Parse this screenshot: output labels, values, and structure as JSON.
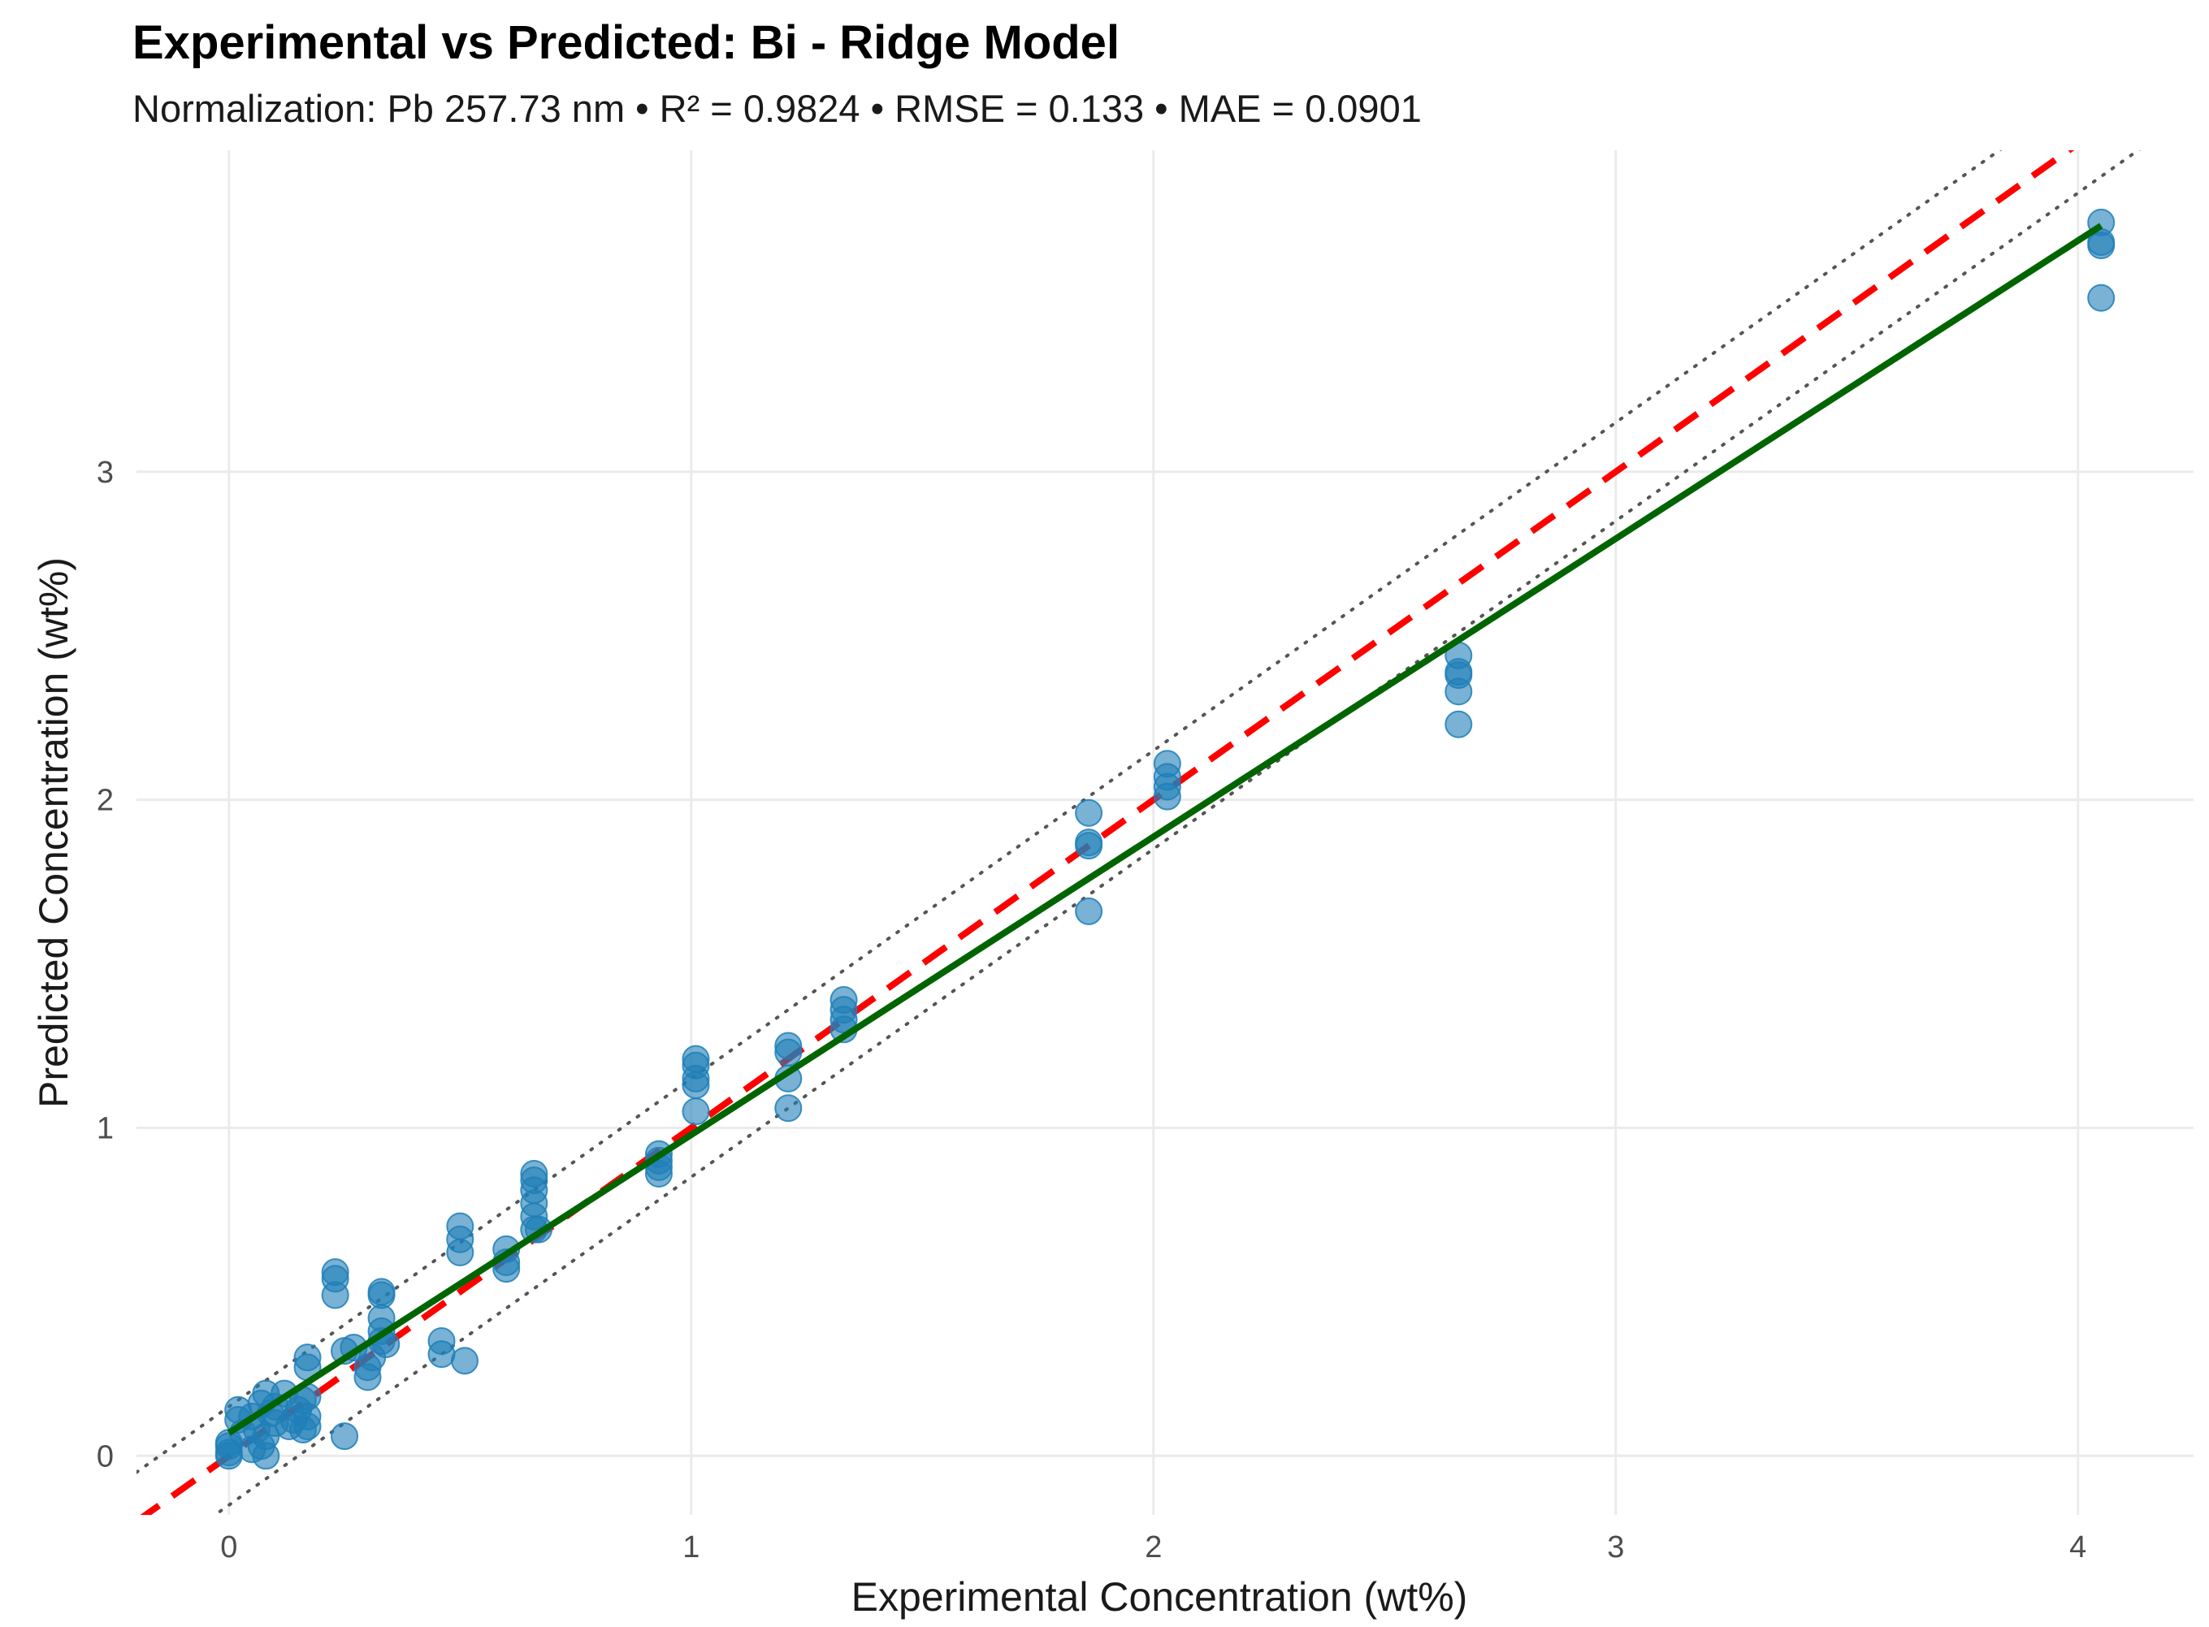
{
  "chart_data": {
    "type": "scatter",
    "title": "Experimental vs Predicted: Bi - Ridge Model",
    "subtitle": "Normalization: Pb 257.73 nm • R² = 0.9824 • RMSE = 0.133 • MAE = 0.0901",
    "xlabel": "Experimental Concentration (wt%)",
    "ylabel": "Predicted Concentration (wt%)",
    "xlim": [
      -0.2,
      4.25
    ],
    "ylim": [
      -0.18,
      3.98
    ],
    "x_ticks": [
      0,
      1,
      2,
      3,
      4
    ],
    "x_tick_labels": [
      "0",
      "1",
      "2",
      "3",
      "4"
    ],
    "y_ticks": [
      0,
      1,
      2,
      3
    ],
    "y_tick_labels": [
      "0",
      "1",
      "2",
      "3"
    ],
    "grid": true,
    "colors": {
      "points": "#1f7fb8",
      "identity_line": "#ff0000",
      "fit_line": "#006400",
      "tolerance_lines": "#555555",
      "grid": "#ebebeb"
    },
    "series": [
      {
        "name": "Samples",
        "kind": "points",
        "x": [
          0,
          0,
          0,
          0,
          0.02,
          0.02,
          0.03,
          0.05,
          0.05,
          0.06,
          0.07,
          0.07,
          0.08,
          0.08,
          0.08,
          0.09,
          0.1,
          0.1,
          0.12,
          0.13,
          0.14,
          0.15,
          0.16,
          0.16,
          0.17,
          0.17,
          0.17,
          0.17,
          0.17,
          0.23,
          0.23,
          0.23,
          0.25,
          0.25,
          0.27,
          0.3,
          0.3,
          0.31,
          0.33,
          0.33,
          0.33,
          0.33,
          0.33,
          0.34,
          0.46,
          0.46,
          0.5,
          0.5,
          0.5,
          0.51,
          0.6,
          0.6,
          0.6,
          0.66,
          0.66,
          0.66,
          0.66,
          0.66,
          0.66,
          0.67,
          0.93,
          0.93,
          0.93,
          0.93,
          1.01,
          1.01,
          1.01,
          1.01,
          1.01,
          1.21,
          1.21,
          1.21,
          1.21,
          1.33,
          1.33,
          1.33,
          1.33,
          1.86,
          1.86,
          1.86,
          1.86,
          2.03,
          2.03,
          2.03,
          2.03,
          2.66,
          2.66,
          2.66,
          2.66,
          2.66,
          4.05,
          4.05,
          4.05,
          4.05
        ],
        "y": [
          0.0,
          0.01,
          0.03,
          0.04,
          0.14,
          0.11,
          0.07,
          0.02,
          0.12,
          0.08,
          0.03,
          0.16,
          0.0,
          0.19,
          0.06,
          0.13,
          0.15,
          0.1,
          0.19,
          0.09,
          0.11,
          0.14,
          0.08,
          0.17,
          0.09,
          0.27,
          0.3,
          0.12,
          0.18,
          0.49,
          0.54,
          0.56,
          0.06,
          0.32,
          0.33,
          0.24,
          0.27,
          0.3,
          0.5,
          0.49,
          0.42,
          0.38,
          0.35,
          0.34,
          0.31,
          0.35,
          0.7,
          0.66,
          0.62,
          0.29,
          0.63,
          0.59,
          0.57,
          0.86,
          0.84,
          0.81,
          0.77,
          0.73,
          0.69,
          0.69,
          0.92,
          0.9,
          0.88,
          0.86,
          1.21,
          1.19,
          1.15,
          1.13,
          1.05,
          1.25,
          1.23,
          1.15,
          1.06,
          1.39,
          1.36,
          1.33,
          1.3,
          1.96,
          1.87,
          1.86,
          1.66,
          2.11,
          2.07,
          2.04,
          2.01,
          2.44,
          2.39,
          2.38,
          2.33,
          2.23,
          3.76,
          3.7,
          3.69,
          3.53
        ]
      },
      {
        "name": "1:1 line",
        "kind": "line",
        "style": "dashed",
        "x": [
          -0.2,
          4.25
        ],
        "y": [
          -0.2,
          4.25
        ]
      },
      {
        "name": "Ridge fit",
        "kind": "line",
        "style": "solid",
        "x": [
          0,
          4.05
        ],
        "y": [
          0.07,
          3.75
        ]
      },
      {
        "name": "Upper tolerance",
        "kind": "line",
        "style": "dotted",
        "x": [
          -0.2,
          4.25
        ],
        "y": [
          -0.05,
          4.4
        ]
      },
      {
        "name": "Lower tolerance",
        "kind": "line",
        "style": "dotted",
        "x": [
          -0.2,
          4.25
        ],
        "y": [
          -0.35,
          4.1
        ]
      }
    ]
  }
}
